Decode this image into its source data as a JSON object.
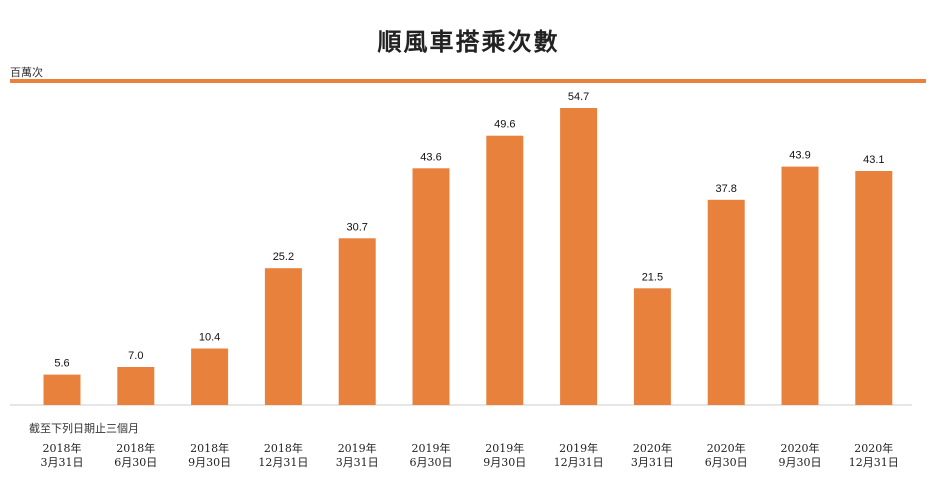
{
  "chart_data": {
    "type": "bar",
    "title": "順風車搭乘次數",
    "ylabel": "百萬次",
    "note": "截至下列日期止三個月",
    "categories": [
      [
        "2018年",
        "3月31日"
      ],
      [
        "2018年",
        "6月30日"
      ],
      [
        "2018年",
        "9月30日"
      ],
      [
        "2018年",
        "12月31日"
      ],
      [
        "2019年",
        "3月31日"
      ],
      [
        "2019年",
        "6月30日"
      ],
      [
        "2019年",
        "9月30日"
      ],
      [
        "2019年",
        "12月31日"
      ],
      [
        "2020年",
        "3月31日"
      ],
      [
        "2020年",
        "6月30日"
      ],
      [
        "2020年",
        "9月30日"
      ],
      [
        "2020年",
        "12月31日"
      ]
    ],
    "values": [
      5.6,
      7.0,
      10.4,
      25.2,
      30.7,
      43.6,
      49.6,
      54.7,
      21.5,
      37.8,
      43.9,
      43.1
    ],
    "value_labels": [
      "5.6",
      "7.0",
      "10.4",
      "25.2",
      "30.7",
      "43.6",
      "49.6",
      "54.7",
      "21.5",
      "37.8",
      "43.9",
      "43.1"
    ],
    "ylim": [
      0,
      54.7
    ],
    "grid": false,
    "colors": {
      "bar": "#e8813b",
      "line": "#e8813b",
      "baseline": "#cccccc"
    }
  }
}
